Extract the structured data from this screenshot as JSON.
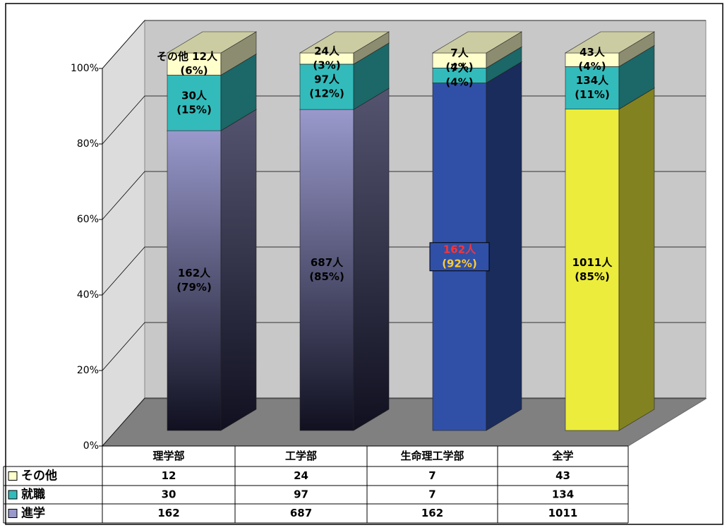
{
  "chart_data": {
    "type": "bar3d-stacked-percent",
    "categories": [
      "理学部",
      "工学部",
      "生命理工学部",
      "全学"
    ],
    "series": [
      {
        "name": "進学",
        "color": "#9999cc",
        "colors": [
          "#9999cc",
          "#9999cc",
          "#3050a8",
          "#ecec3c"
        ],
        "values": [
          162,
          687,
          162,
          1011
        ],
        "value_labels": [
          [
            "162人",
            "(79%)"
          ],
          [
            "687人",
            "(85%)"
          ],
          [
            "162人",
            "(92%)"
          ],
          [
            "1011人",
            "(85%)"
          ]
        ]
      },
      {
        "name": "就職",
        "color": "#33bbbb",
        "values": [
          30,
          97,
          7,
          134
        ],
        "value_labels": [
          [
            "30人",
            "(15%)"
          ],
          [
            "97人",
            "(12%)"
          ],
          [
            "7人",
            "(4%)"
          ],
          [
            "134人",
            "(11%)"
          ]
        ]
      },
      {
        "name": "その他",
        "color": "#ffffcc",
        "values": [
          12,
          24,
          7,
          43
        ],
        "value_labels": [
          [
            "その他 12人",
            "(6%)"
          ],
          [
            "24人",
            "(3%)"
          ],
          [
            "7人",
            "(4%)"
          ],
          [
            "43人",
            "(4%)"
          ]
        ]
      }
    ],
    "ylim": [
      0,
      100
    ],
    "yticks": [
      {
        "value": 0,
        "label": "0%"
      },
      {
        "value": 20,
        "label": "20%"
      },
      {
        "value": 40,
        "label": "40%"
      },
      {
        "value": 60,
        "label": "60%"
      },
      {
        "value": 80,
        "label": "80%"
      },
      {
        "value": 100,
        "label": "100%"
      }
    ],
    "grid": true,
    "data_table": true
  }
}
